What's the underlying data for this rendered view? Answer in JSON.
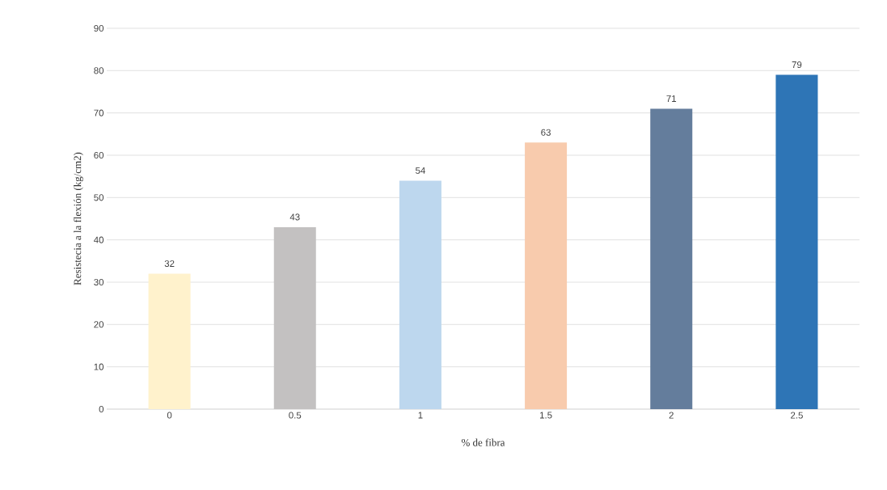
{
  "chart_data": {
    "type": "bar",
    "xlabel": "% de fibra",
    "ylabel": "Resistecia a la flexión (kg/cm2)",
    "categories": [
      "0",
      "0.5",
      "1",
      "1.5",
      "2",
      "2.5"
    ],
    "values": [
      32,
      43,
      54,
      63,
      71,
      79
    ],
    "colors": [
      "#fff2cc",
      "#c3c1c1",
      "#bdd7ee",
      "#f8cbad",
      "#647d9c",
      "#2e75b6"
    ],
    "ylim": [
      0,
      90
    ],
    "yticks": [
      0,
      10,
      20,
      30,
      40,
      50,
      60,
      70,
      80,
      90
    ],
    "grid": "y",
    "data_labels": true
  }
}
